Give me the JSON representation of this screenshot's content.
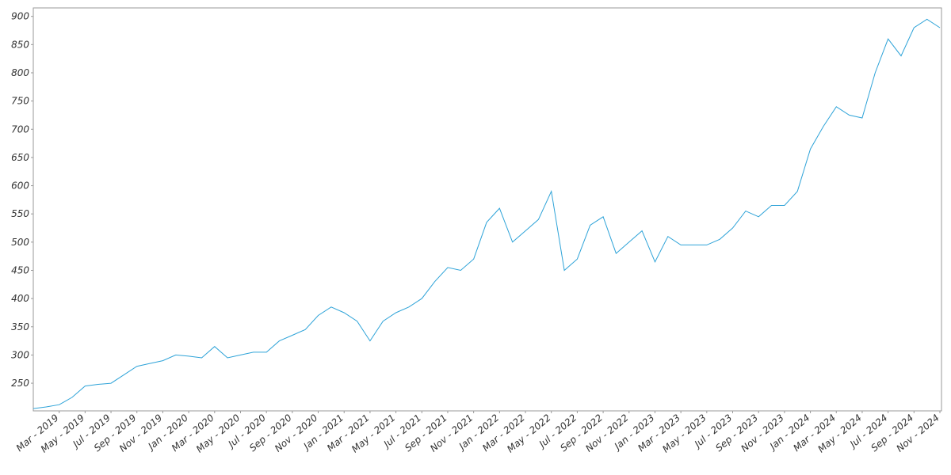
{
  "chart_data": {
    "type": "line",
    "x": [
      "2019-01",
      "2019-02",
      "2019-03",
      "2019-04",
      "2019-05",
      "2019-06",
      "2019-07",
      "2019-08",
      "2019-09",
      "2019-10",
      "2019-11",
      "2019-12",
      "2020-01",
      "2020-02",
      "2020-03",
      "2020-04",
      "2020-05",
      "2020-06",
      "2020-07",
      "2020-08",
      "2020-09",
      "2020-10",
      "2020-11",
      "2020-12",
      "2021-01",
      "2021-02",
      "2021-03",
      "2021-04",
      "2021-05",
      "2021-06",
      "2021-07",
      "2021-08",
      "2021-09",
      "2021-10",
      "2021-11",
      "2021-12",
      "2022-01",
      "2022-02",
      "2022-03",
      "2022-04",
      "2022-05",
      "2022-06",
      "2022-07",
      "2022-08",
      "2022-09",
      "2022-10",
      "2022-11",
      "2022-12",
      "2023-01",
      "2023-02",
      "2023-03",
      "2023-04",
      "2023-05",
      "2023-06",
      "2023-07",
      "2023-08",
      "2023-09",
      "2023-10",
      "2023-11",
      "2023-12",
      "2024-01",
      "2024-02",
      "2024-03",
      "2024-04",
      "2024-05",
      "2024-06",
      "2024-07",
      "2024-08",
      "2024-09",
      "2024-10",
      "2024-11"
    ],
    "series": [
      {
        "color": "#2ea3d8",
        "values": [
          205,
          208,
          212,
          225,
          245,
          248,
          250,
          265,
          280,
          285,
          290,
          300,
          298,
          295,
          315,
          295,
          300,
          305,
          305,
          325,
          335,
          345,
          370,
          385,
          375,
          360,
          325,
          360,
          375,
          385,
          400,
          430,
          455,
          450,
          470,
          535,
          560,
          500,
          520,
          540,
          590,
          450,
          470,
          530,
          545,
          480,
          500,
          520,
          465,
          510,
          495,
          495,
          495,
          505,
          525,
          555,
          545,
          565,
          565,
          590,
          665,
          705,
          740,
          725,
          720,
          800,
          860,
          830,
          880,
          895,
          880
        ]
      }
    ],
    "xlim": [
      "2019-01",
      "2024-11"
    ],
    "xticks": [
      {
        "value": "2019-03",
        "label": "Mar - 2019"
      },
      {
        "value": "2019-05",
        "label": "May - 2019"
      },
      {
        "value": "2019-07",
        "label": "Jul - 2019"
      },
      {
        "value": "2019-09",
        "label": "Sep - 2019"
      },
      {
        "value": "2019-11",
        "label": "Nov - 2019"
      },
      {
        "value": "2020-01",
        "label": "Jan - 2020"
      },
      {
        "value": "2020-03",
        "label": "Mar - 2020"
      },
      {
        "value": "2020-05",
        "label": "May - 2020"
      },
      {
        "value": "2020-07",
        "label": "Jul - 2020"
      },
      {
        "value": "2020-09",
        "label": "Sep - 2020"
      },
      {
        "value": "2020-11",
        "label": "Nov - 2020"
      },
      {
        "value": "2021-01",
        "label": "Jan - 2021"
      },
      {
        "value": "2021-03",
        "label": "Mar - 2021"
      },
      {
        "value": "2021-05",
        "label": "May - 2021"
      },
      {
        "value": "2021-07",
        "label": "Jul - 2021"
      },
      {
        "value": "2021-09",
        "label": "Sep - 2021"
      },
      {
        "value": "2021-11",
        "label": "Nov - 2021"
      },
      {
        "value": "2022-01",
        "label": "Jan - 2022"
      },
      {
        "value": "2022-03",
        "label": "Mar - 2022"
      },
      {
        "value": "2022-05",
        "label": "May - 2022"
      },
      {
        "value": "2022-07",
        "label": "Jul - 2022"
      },
      {
        "value": "2022-09",
        "label": "Sep - 2022"
      },
      {
        "value": "2022-11",
        "label": "Nov - 2022"
      },
      {
        "value": "2023-01",
        "label": "Jan - 2023"
      },
      {
        "value": "2023-03",
        "label": "Mar - 2023"
      },
      {
        "value": "2023-05",
        "label": "May - 2023"
      },
      {
        "value": "2023-07",
        "label": "Jul - 2023"
      },
      {
        "value": "2023-09",
        "label": "Sep - 2023"
      },
      {
        "value": "2023-11",
        "label": "Nov - 2023"
      },
      {
        "value": "2024-01",
        "label": "Jan - 2024"
      },
      {
        "value": "2024-03",
        "label": "Mar - 2024"
      },
      {
        "value": "2024-05",
        "label": "May - 2024"
      },
      {
        "value": "2024-07",
        "label": "Jul - 2024"
      },
      {
        "value": "2024-09",
        "label": "Sep - 2024"
      },
      {
        "value": "2024-11",
        "label": "Nov - 2024"
      }
    ],
    "ylim": [
      201,
      915
    ],
    "yticks": [
      250,
      300,
      350,
      400,
      450,
      500,
      550,
      600,
      650,
      700,
      750,
      800,
      850,
      900
    ],
    "grid": false
  }
}
